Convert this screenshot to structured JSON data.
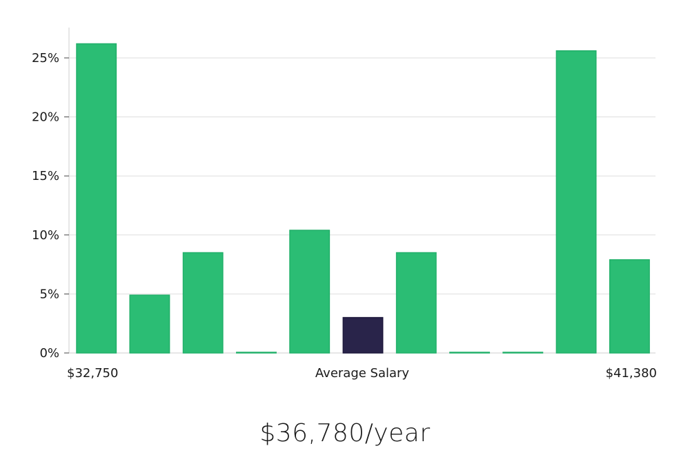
{
  "chart_data": {
    "type": "bar",
    "categories": [
      "1",
      "2",
      "3",
      "4",
      "5",
      "6",
      "7",
      "8",
      "9",
      "10",
      "11"
    ],
    "values": [
      26.2,
      4.9,
      8.5,
      0,
      10.4,
      3.0,
      8.5,
      0,
      0,
      25.6,
      7.9
    ],
    "highlight_index": 5,
    "ylim": [
      0,
      27
    ],
    "yticks": [
      0,
      5,
      10,
      15,
      20,
      25
    ],
    "ytick_suffix": "%",
    "xlabel": "Average Salary",
    "x_min_label": "$32,750",
    "x_max_label": "$41,380",
    "grid": true,
    "colors": {
      "bar": "#2bbd74",
      "highlight": "#29244a",
      "grid": "#dddddd",
      "axis": "#cccccc"
    }
  },
  "salary": {
    "text": "$36,780/year"
  }
}
